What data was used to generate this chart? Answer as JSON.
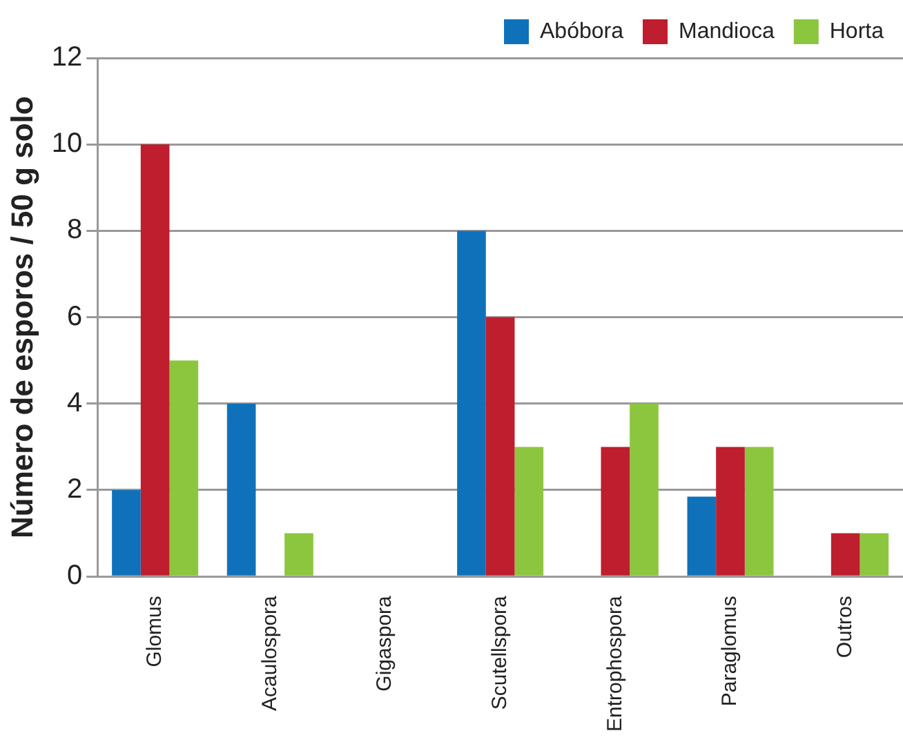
{
  "chart_data": {
    "type": "bar",
    "ylabel": "Número de esporos / 50 g solo",
    "categories": [
      "Glomus",
      "Acaulospora",
      "Gigaspora",
      "Scutellspora",
      "Entrophospora",
      "Paraglomus",
      "Outros"
    ],
    "series": [
      {
        "name": "Abóbora",
        "color": "#1071bb",
        "values": [
          2,
          4,
          0,
          8,
          0,
          1.85,
          0
        ]
      },
      {
        "name": "Mandioca",
        "color": "#be1e2d",
        "values": [
          10,
          0,
          0,
          6,
          3,
          3,
          1
        ]
      },
      {
        "name": "Horta",
        "color": "#8cc63f",
        "values": [
          5,
          1,
          0,
          3,
          4,
          3,
          1
        ]
      }
    ],
    "ylim": [
      0,
      12
    ],
    "yticks": [
      0,
      2,
      4,
      6,
      8,
      10,
      12
    ],
    "grid": "y",
    "legend": "top"
  }
}
